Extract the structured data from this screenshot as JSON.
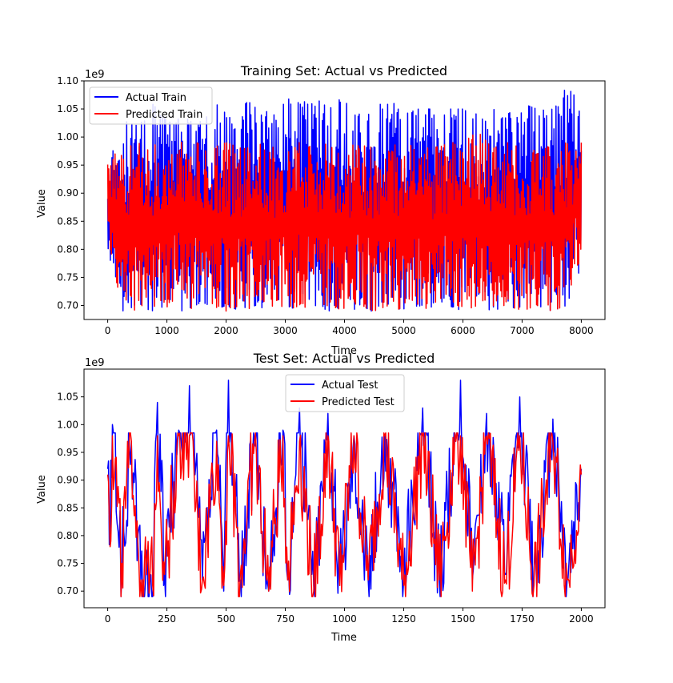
{
  "colors": {
    "actual": "#0000ff",
    "predicted": "#ff0000"
  },
  "chart_data": [
    {
      "type": "line",
      "title": "Training Set: Actual vs Predicted",
      "xlabel": "Time",
      "ylabel": "Value",
      "offset_text": "1e9",
      "xlim": [
        -400,
        8400
      ],
      "ylim": [
        0.675,
        1.1
      ],
      "xticks": [
        0,
        1000,
        2000,
        3000,
        4000,
        5000,
        6000,
        7000,
        8000
      ],
      "xtick_labels": [
        "0",
        "1000",
        "2000",
        "3000",
        "4000",
        "5000",
        "6000",
        "7000",
        "8000"
      ],
      "yticks": [
        0.7,
        0.75,
        0.8,
        0.85,
        0.9,
        0.95,
        1.0,
        1.05,
        1.1
      ],
      "ytick_labels": [
        "0.70",
        "0.75",
        "0.80",
        "0.85",
        "0.90",
        "0.95",
        "1.00",
        "1.05",
        "1.10"
      ],
      "grid": false,
      "legend_position": "upper left",
      "series": [
        {
          "name": "Actual Train",
          "color": "#0000ff",
          "x": [
            0,
            250,
            500,
            750,
            1000,
            1250,
            1500,
            1750,
            2000,
            2250,
            2500,
            2750,
            3000,
            3250,
            3500,
            3750,
            4000,
            4250,
            4500,
            4750,
            5000,
            5250,
            5500,
            5750,
            6000,
            6250,
            6500,
            6750,
            7000,
            7250,
            7500,
            7750,
            8000
          ],
          "max": [
            0.95,
            1.03,
            1.02,
            1.06,
            1.03,
            1.04,
            1.02,
            1.08,
            1.04,
            1.07,
            1.06,
            1.04,
            1.07,
            1.06,
            1.07,
            1.05,
            1.08,
            1.05,
            1.05,
            1.07,
            1.04,
            1.05,
            1.05,
            1.05,
            1.05,
            1.04,
            1.05,
            1.04,
            1.06,
            1.05,
            1.05,
            1.09,
            1.06
          ],
          "min": [
            0.8,
            0.69,
            0.7,
            0.69,
            0.7,
            0.69,
            0.7,
            0.69,
            0.7,
            0.69,
            0.7,
            0.69,
            0.7,
            0.69,
            0.7,
            0.69,
            0.7,
            0.69,
            0.69,
            0.7,
            0.69,
            0.7,
            0.69,
            0.7,
            0.69,
            0.7,
            0.69,
            0.7,
            0.69,
            0.7,
            0.69,
            0.7,
            0.77
          ]
        },
        {
          "name": "Predicted Train",
          "color": "#ff0000",
          "x": [
            0,
            250,
            500,
            750,
            1000,
            1250,
            1500,
            1750,
            2000,
            2250,
            2500,
            2750,
            3000,
            3250,
            3500,
            3750,
            4000,
            4250,
            4500,
            4750,
            5000,
            5250,
            5500,
            5750,
            6000,
            6250,
            6500,
            6750,
            7000,
            7250,
            7500,
            7750,
            8000
          ],
          "max": [
            0.96,
            0.98,
            0.99,
            0.98,
            1.01,
            0.99,
            0.99,
            0.98,
            0.99,
            0.98,
            0.99,
            0.98,
            0.99,
            0.99,
            0.98,
            0.99,
            0.98,
            0.99,
            0.98,
            0.99,
            0.98,
            0.99,
            0.98,
            0.99,
            0.99,
            1.01,
            0.98,
            0.99,
            0.98,
            0.99,
            0.98,
            0.99,
            0.99
          ],
          "min": [
            0.8,
            0.7,
            0.69,
            0.7,
            0.69,
            0.7,
            0.69,
            0.7,
            0.69,
            0.7,
            0.69,
            0.7,
            0.69,
            0.7,
            0.69,
            0.7,
            0.69,
            0.7,
            0.69,
            0.7,
            0.69,
            0.7,
            0.69,
            0.7,
            0.69,
            0.7,
            0.69,
            0.7,
            0.69,
            0.7,
            0.69,
            0.7,
            0.79
          ]
        }
      ]
    },
    {
      "type": "line",
      "title": "Test Set: Actual vs Predicted",
      "xlabel": "Time",
      "ylabel": "Value",
      "offset_text": "1e9",
      "xlim": [
        -100,
        2100
      ],
      "ylim": [
        0.67,
        1.1
      ],
      "xticks": [
        0,
        250,
        500,
        750,
        1000,
        1250,
        1500,
        1750,
        2000
      ],
      "xtick_labels": [
        "0",
        "250",
        "500",
        "750",
        "1000",
        "1250",
        "1500",
        "1750",
        "2000"
      ],
      "yticks": [
        0.7,
        0.75,
        0.8,
        0.85,
        0.9,
        0.95,
        1.0,
        1.05
      ],
      "ytick_labels": [
        "0.70",
        "0.75",
        "0.80",
        "0.85",
        "0.90",
        "0.95",
        "1.00",
        "1.05"
      ],
      "grid": false,
      "legend_position": "upper center",
      "series": [
        {
          "name": "Actual Test",
          "color": "#0000ff",
          "x": [
            0,
            10,
            20,
            60,
            100,
            140,
            190,
            210,
            240,
            300,
            345,
            400,
            460,
            490,
            510,
            560,
            620,
            680,
            740,
            760,
            810,
            870,
            930,
            980,
            1040,
            1100,
            1170,
            1250,
            1330,
            1400,
            1470,
            1490,
            1540,
            1600,
            1680,
            1740,
            1800,
            1880,
            1940,
            2000
          ],
          "values": [
            0.92,
            0.8,
            1.0,
            0.74,
            0.97,
            0.72,
            0.69,
            1.04,
            0.73,
            0.99,
            1.07,
            0.72,
            0.99,
            0.7,
            1.08,
            0.72,
            0.97,
            0.7,
            0.99,
            0.72,
            1.03,
            0.71,
            1.02,
            0.72,
            0.98,
            0.72,
            0.98,
            0.72,
            1.03,
            0.72,
            0.97,
            1.08,
            0.72,
            1.02,
            0.73,
            1.05,
            0.72,
            1.01,
            0.72,
            0.92
          ]
        },
        {
          "name": "Predicted Test",
          "color": "#ff0000",
          "x": [
            0,
            10,
            20,
            60,
            100,
            140,
            190,
            210,
            240,
            300,
            345,
            400,
            460,
            490,
            510,
            560,
            620,
            680,
            740,
            760,
            810,
            870,
            930,
            980,
            1040,
            1100,
            1170,
            1250,
            1330,
            1400,
            1470,
            1490,
            1540,
            1600,
            1680,
            1740,
            1800,
            1880,
            1940,
            2000
          ],
          "values": [
            0.91,
            0.78,
            0.98,
            0.75,
            0.97,
            0.72,
            0.71,
            0.98,
            0.73,
            0.98,
            0.98,
            0.72,
            0.97,
            0.71,
            0.98,
            0.73,
            0.97,
            0.7,
            0.98,
            0.72,
            0.97,
            0.7,
            0.98,
            0.71,
            0.98,
            0.72,
            0.98,
            0.71,
            0.98,
            0.72,
            0.97,
            0.98,
            0.7,
            0.98,
            0.72,
            0.98,
            0.71,
            0.97,
            0.72,
            0.91
          ]
        }
      ]
    }
  ]
}
